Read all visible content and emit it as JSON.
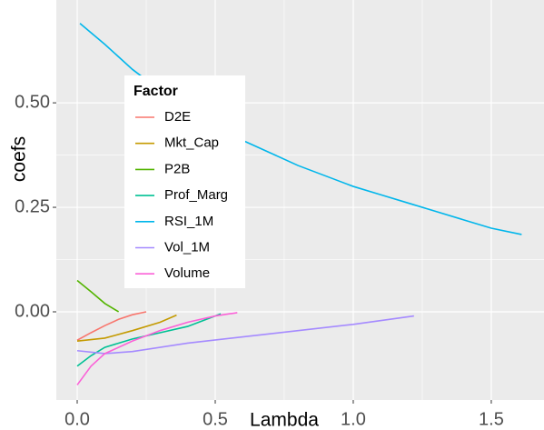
{
  "chart_data": {
    "type": "line",
    "x_label": "Lambda",
    "y_label": "coefs",
    "legend_title": "Factor",
    "xlim": [
      -0.0757,
      1.691
    ],
    "ylim": [
      -0.211,
      0.746
    ],
    "xticks": [
      {
        "value": 0,
        "label": "0.0"
      },
      {
        "value": 0.5,
        "label": "0.5"
      },
      {
        "value": 1,
        "label": "1.0"
      },
      {
        "value": 1.5,
        "label": "1.5"
      }
    ],
    "yticks": [
      {
        "value": 0,
        "label": "0.00"
      },
      {
        "value": 0.25,
        "label": "0.25"
      },
      {
        "value": 0.5,
        "label": "0.50"
      }
    ],
    "grid": true,
    "legend_position": "inside-left",
    "series": [
      {
        "name": "D2E",
        "color": "#F8766D",
        "x": [
          0.0,
          0.05,
          0.1,
          0.15,
          0.2,
          0.25
        ],
        "values": [
          -0.068,
          -0.05,
          -0.033,
          -0.018,
          -0.007,
          0.0
        ]
      },
      {
        "name": "Mkt_Cap",
        "color": "#C49A00",
        "x": [
          0.0,
          0.1,
          0.2,
          0.3,
          0.36
        ],
        "values": [
          -0.07,
          -0.063,
          -0.045,
          -0.025,
          -0.008
        ]
      },
      {
        "name": "P2B",
        "color": "#53B400",
        "x": [
          0.0,
          0.05,
          0.1,
          0.15
        ],
        "values": [
          0.075,
          0.048,
          0.02,
          0.0
        ]
      },
      {
        "name": "Prof_Marg",
        "color": "#00C094",
        "x": [
          0.0,
          0.05,
          0.1,
          0.2,
          0.3,
          0.4,
          0.52
        ],
        "values": [
          -0.13,
          -0.105,
          -0.085,
          -0.065,
          -0.05,
          -0.035,
          -0.005
        ]
      },
      {
        "name": "RSI_1M",
        "color": "#00B6EB",
        "x": [
          0.01,
          0.1,
          0.2,
          0.3,
          0.4,
          0.5,
          0.6,
          0.7,
          0.8,
          0.9,
          1.0,
          1.1,
          1.2,
          1.3,
          1.4,
          1.5,
          1.61
        ],
        "values": [
          0.69,
          0.64,
          0.58,
          0.53,
          0.48,
          0.44,
          0.41,
          0.38,
          0.35,
          0.325,
          0.3,
          0.28,
          0.26,
          0.24,
          0.22,
          0.2,
          0.185
        ]
      },
      {
        "name": "Vol_1M",
        "color": "#A58AFF",
        "x": [
          0.0,
          0.1,
          0.2,
          0.4,
          0.6,
          0.8,
          1.0,
          1.22
        ],
        "values": [
          -0.093,
          -0.1,
          -0.095,
          -0.075,
          -0.06,
          -0.045,
          -0.03,
          -0.01
        ]
      },
      {
        "name": "Volume",
        "color": "#FB61D7",
        "x": [
          0.0,
          0.05,
          0.1,
          0.2,
          0.3,
          0.4,
          0.5,
          0.58
        ],
        "values": [
          -0.175,
          -0.13,
          -0.1,
          -0.07,
          -0.045,
          -0.025,
          -0.01,
          -0.002
        ]
      }
    ]
  }
}
